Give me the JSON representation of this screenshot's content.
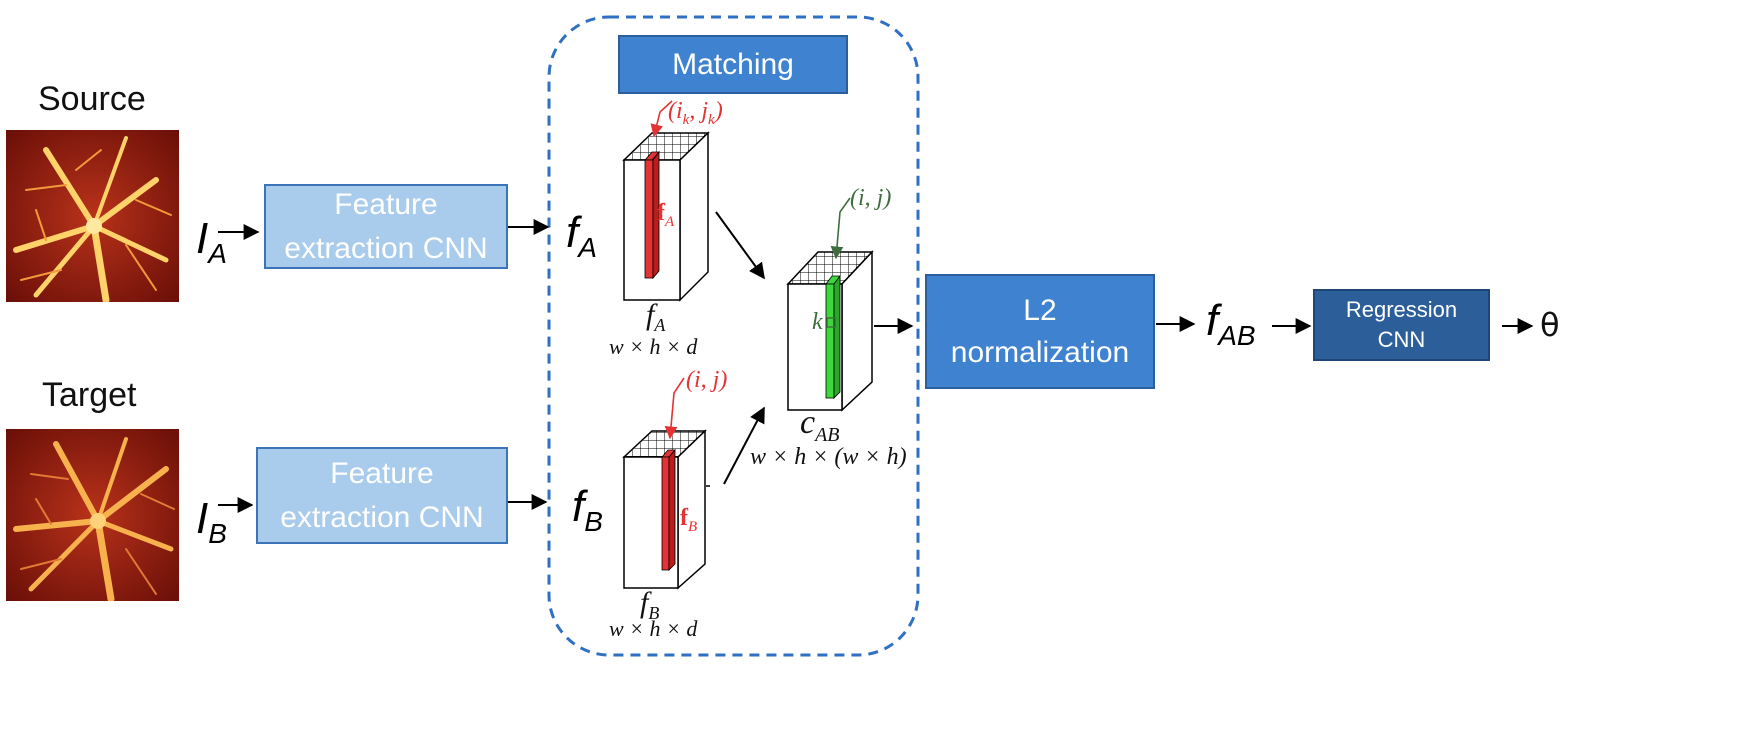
{
  "inputs": {
    "source_label": "Source",
    "target_label": "Target",
    "source_symbol": "I",
    "source_subscript": "A",
    "target_symbol": "I",
    "target_subscript": "B"
  },
  "feature_extraction": {
    "top_label_line1": "Feature",
    "top_label_line2": "extraction CNN",
    "bottom_label_line1": "Feature",
    "bottom_label_line2": "extraction CNN"
  },
  "features": {
    "fa_symbol": "f",
    "fa_subscript": "A",
    "fb_symbol": "f",
    "fb_subscript": "B"
  },
  "matching": {
    "title": "Matching",
    "fa_index_label": "(i_k, j_k)",
    "fa_vector_label": "f",
    "fa_vector_sub": "A",
    "fa_tensor_label": "f",
    "fa_tensor_sub": "A",
    "fa_dims": "w × h × d",
    "fb_index_label": "(i, j)",
    "fb_vector_label": "f",
    "fb_vector_sub": "B",
    "fb_tensor_label": "f",
    "fb_tensor_sub": "B",
    "fb_dims": "w × h × d",
    "cab_index_label": "(i, j)",
    "cab_k_label": "k",
    "cab_label": "c",
    "cab_sub": "AB",
    "cab_dims": "w × h × (w × h)"
  },
  "normalization": {
    "line1": "L2",
    "line2": "normalization"
  },
  "fab": {
    "symbol": "f",
    "subscript": "AB"
  },
  "regression": {
    "line1": "Regression",
    "line2": "CNN"
  },
  "output": {
    "symbol": "θ"
  },
  "colors": {
    "light_box": "#a9cbec",
    "mid_box": "#3e82d0",
    "dark_box": "#2c5f99",
    "dashed_border": "#2f6fc4",
    "highlight_red": "#e53333",
    "highlight_green": "#3cd83c",
    "label_green": "#3f6d3f"
  }
}
